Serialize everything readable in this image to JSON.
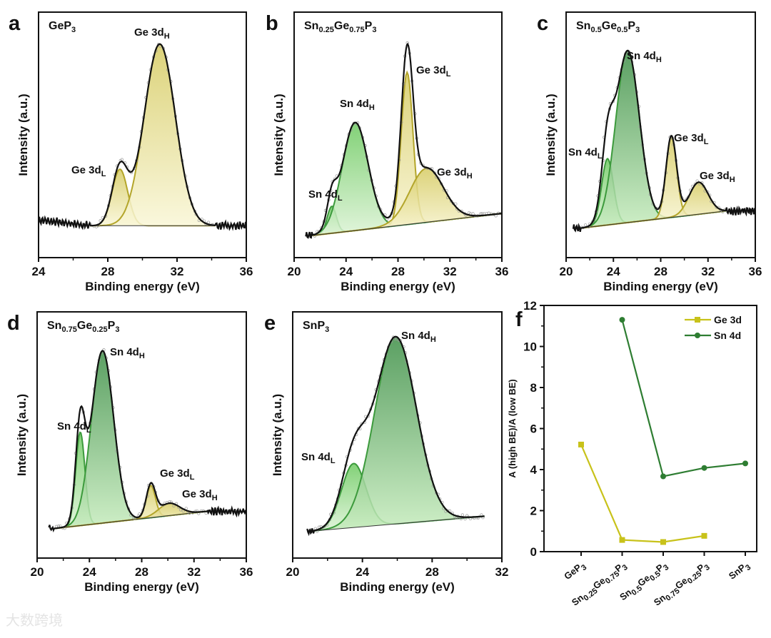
{
  "watermark": "大数跨境",
  "colors": {
    "ge_stroke": "#b3a52a",
    "ge_fill_top": "#d6cb63",
    "ge_fill_bottom": "#f9f6d6",
    "sn_stroke": "#3c9a3c",
    "sn_fill_top": "#6cc95f",
    "sn_fill_bottom": "#dcf3d5",
    "sn_dark_top": "#3e8f47",
    "envelope": "#111111",
    "ge_series": "#c8c21a",
    "sn_series": "#2e7d32"
  },
  "chart_data": [
    {
      "type": "line",
      "panel": "a",
      "title": [
        {
          "t": "GeP"
        },
        {
          "t": "3",
          "sub": true
        }
      ],
      "xlabel": "Binding energy (eV)",
      "ylabel": "Intensity (a.u.)",
      "xlim": [
        24,
        36
      ],
      "xticks": [
        "24",
        "28",
        "32",
        "36"
      ],
      "ylim": [
        0,
        100
      ],
      "data_range": [
        24,
        36
      ],
      "fit_range": [
        27,
        34.2
      ],
      "baseline": [
        13,
        13
      ],
      "peaks": [
        {
          "name": "Ge 3d",
          "sub": "L",
          "el": "Ge",
          "center": 28.7,
          "height": 23,
          "sigma": 0.45
        },
        {
          "name": "Ge 3d",
          "sub": "H",
          "el": "Ge",
          "center": 31.0,
          "height": 74,
          "sigma": 0.9
        }
      ]
    },
    {
      "type": "line",
      "panel": "b",
      "title": [
        {
          "t": "Sn"
        },
        {
          "t": "0.25",
          "sub": true
        },
        {
          "t": "Ge"
        },
        {
          "t": "0.75",
          "sub": true
        },
        {
          "t": "P"
        },
        {
          "t": "3",
          "sub": true
        }
      ],
      "xlabel": "Binding energy (eV)",
      "ylabel": "Intensity (a.u.)",
      "xlim": [
        20,
        36
      ],
      "xticks": [
        "20",
        "24",
        "28",
        "32",
        "36"
      ],
      "ylim": [
        0,
        100
      ],
      "data_range": [
        20.9,
        36
      ],
      "fit_range": [
        21.4,
        36
      ],
      "baseline": [
        9,
        18
      ],
      "peaks": [
        {
          "name": "Sn 4d",
          "sub": "L",
          "el": "Sn",
          "center": 22.9,
          "height": 11,
          "sigma": 0.35
        },
        {
          "name": "Sn 4d",
          "sub": "H",
          "el": "Sn",
          "center": 24.7,
          "height": 44,
          "sigma": 1.0
        },
        {
          "name": "Ge 3d",
          "sub": "L",
          "el": "Ge",
          "center": 28.7,
          "height": 62,
          "sigma": 0.45
        },
        {
          "name": "Ge 3d",
          "sub": "H",
          "el": "Ge",
          "center": 30.2,
          "height": 22,
          "sigma": 1.3
        }
      ]
    },
    {
      "type": "line",
      "panel": "c",
      "title": [
        {
          "t": "Sn"
        },
        {
          "t": "0.5",
          "sub": true
        },
        {
          "t": "Ge"
        },
        {
          "t": "0.5",
          "sub": true
        },
        {
          "t": "P"
        },
        {
          "t": "3",
          "sub": true
        }
      ],
      "xlabel": "Binding energy (eV)",
      "ylabel": "Intensity (a.u.)",
      "xlim": [
        20,
        36
      ],
      "xticks": [
        "20",
        "24",
        "28",
        "32",
        "36"
      ],
      "ylim": [
        0,
        100
      ],
      "data_range": [
        20.6,
        36
      ],
      "fit_range": [
        21.2,
        33.5
      ],
      "baseline": [
        12,
        19
      ],
      "peaks": [
        {
          "name": "Sn 4d",
          "sub": "L",
          "el": "Sn",
          "center": 23.5,
          "height": 27,
          "sigma": 0.5
        },
        {
          "name": "Sn 4d",
          "sub": "H",
          "el": "SnD",
          "center": 25.2,
          "height": 70,
          "sigma": 1.0
        },
        {
          "name": "Ge 3d",
          "sub": "L",
          "el": "Ge",
          "center": 28.9,
          "height": 33,
          "sigma": 0.45
        },
        {
          "name": "Ge 3d",
          "sub": "H",
          "el": "Ge",
          "center": 31.2,
          "height": 13,
          "sigma": 0.8
        }
      ]
    },
    {
      "type": "line",
      "panel": "d",
      "title": [
        {
          "t": "Sn"
        },
        {
          "t": "0.75",
          "sub": true
        },
        {
          "t": "Ge"
        },
        {
          "t": "0.25",
          "sub": true
        },
        {
          "t": "P"
        },
        {
          "t": "3",
          "sub": true
        }
      ],
      "xlabel": "Binding energy (eV)",
      "ylabel": "Intensity (a.u.)",
      "xlim": [
        20,
        36
      ],
      "xticks": [
        "20",
        "24",
        "28",
        "32",
        "36"
      ],
      "ylim": [
        0,
        100
      ],
      "data_range": [
        20.9,
        36
      ],
      "fit_range": [
        21.3,
        33
      ],
      "baseline": [
        12,
        19
      ],
      "peaks": [
        {
          "name": "Sn 4d",
          "sub": "L",
          "el": "Sn",
          "center": 23.3,
          "height": 38,
          "sigma": 0.35
        },
        {
          "name": "Sn 4d",
          "sub": "H",
          "el": "SnD",
          "center": 25.0,
          "height": 70,
          "sigma": 0.85
        },
        {
          "name": "Ge 3d",
          "sub": "L",
          "el": "Ge",
          "center": 28.7,
          "height": 13,
          "sigma": 0.35
        },
        {
          "name": "Ge 3d",
          "sub": "H",
          "el": "Ge",
          "center": 30.1,
          "height": 5,
          "sigma": 0.8
        }
      ]
    },
    {
      "type": "line",
      "panel": "e",
      "title": [
        {
          "t": "SnP"
        },
        {
          "t": "3",
          "sub": true
        }
      ],
      "xlabel": "Binding energy (eV)",
      "ylabel": "Intensity (a.u.)",
      "xlim": [
        20,
        32
      ],
      "xticks": [
        "20",
        "24",
        "28",
        "32"
      ],
      "ylim": [
        0,
        100
      ],
      "data_range": [
        20.8,
        31
      ],
      "fit_range": [
        21.2,
        31
      ],
      "baseline": [
        11,
        17
      ],
      "peaks": [
        {
          "name": "Sn 4d",
          "sub": "L",
          "el": "Sn",
          "center": 23.5,
          "height": 26,
          "sigma": 0.7
        },
        {
          "name": "Sn 4d",
          "sub": "H",
          "el": "SnD",
          "center": 25.9,
          "height": 76,
          "sigma": 1.2
        }
      ]
    },
    {
      "type": "line",
      "panel": "f",
      "ylabel": "A (high BE)/A (low BE)",
      "ylim": [
        0,
        12
      ],
      "yticks": [
        "0",
        "2",
        "4",
        "6",
        "8",
        "10",
        "12"
      ],
      "categories": [
        [
          {
            "t": "GeP"
          },
          {
            "t": "3",
            "sub": true
          }
        ],
        [
          {
            "t": "Sn"
          },
          {
            "t": "0.25",
            "sub": true
          },
          {
            "t": "Ge"
          },
          {
            "t": "0.75",
            "sub": true
          },
          {
            "t": "P"
          },
          {
            "t": "3",
            "sub": true
          }
        ],
        [
          {
            "t": "Sn"
          },
          {
            "t": "0.5",
            "sub": true
          },
          {
            "t": "Ge"
          },
          {
            "t": "0.5",
            "sub": true
          },
          {
            "t": "P"
          },
          {
            "t": "3",
            "sub": true
          }
        ],
        [
          {
            "t": "Sn"
          },
          {
            "t": "0.75",
            "sub": true
          },
          {
            "t": "Ge"
          },
          {
            "t": "0.25",
            "sub": true
          },
          {
            "t": "P"
          },
          {
            "t": "3",
            "sub": true
          }
        ],
        [
          {
            "t": "SnP"
          },
          {
            "t": "3",
            "sub": true
          }
        ]
      ],
      "legend_position": "top-right",
      "series": [
        {
          "name": "Ge 3d",
          "marker": "square",
          "values": [
            5.22,
            0.57,
            0.47,
            0.77,
            null
          ]
        },
        {
          "name": "Sn 4d",
          "marker": "circle",
          "values": [
            null,
            11.3,
            3.67,
            4.08,
            4.3
          ]
        }
      ]
    }
  ]
}
